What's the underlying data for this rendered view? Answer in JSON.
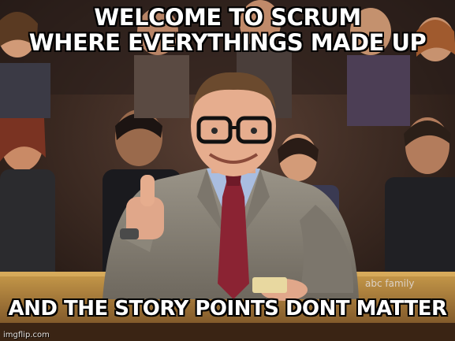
{
  "meme": {
    "top_text_line1": "WELCOME TO SCRUM",
    "top_text_line2": "WHERE EVERYTHINGS MADE UP",
    "bottom_text": "AND THE STORY POINTS DONT MATTER",
    "watermark": "imgflip.com",
    "channel_logo": "abc family"
  },
  "image": {
    "subject-icon": "smiling-host-thumbs-up",
    "background-icon": "studio-audience"
  },
  "colors": {
    "caption_text": "#ffffff",
    "caption_outline": "#000000",
    "suit": "#8a8478",
    "tie": "#8b2333",
    "shirt": "#a9bde0",
    "audience_bg": "#3a2a24"
  }
}
